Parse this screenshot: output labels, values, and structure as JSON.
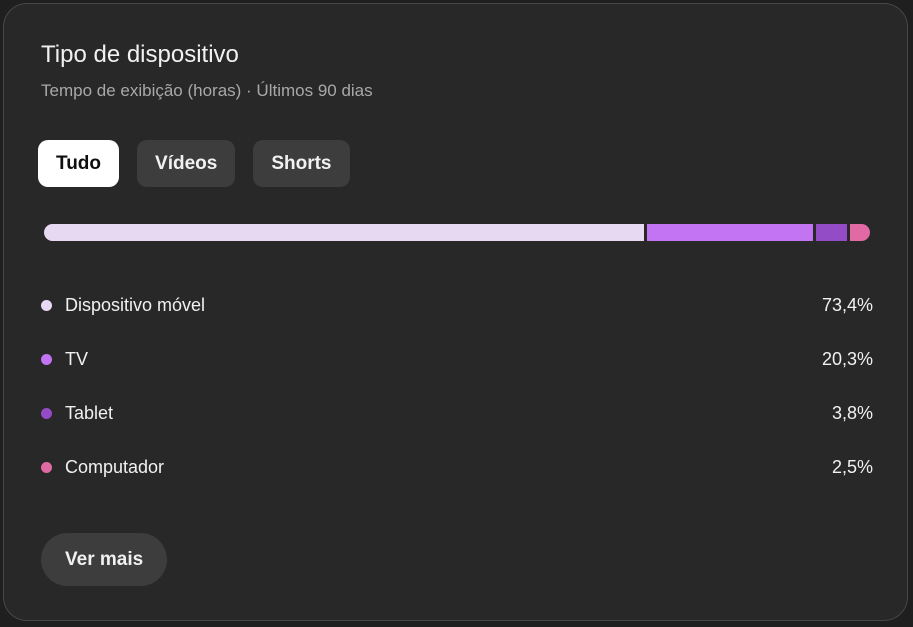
{
  "header": {
    "title": "Tipo de dispositivo",
    "subtitle": "Tempo de exibição (horas) · Últimos 90 dias"
  },
  "tabs": [
    {
      "label": "Tudo",
      "active": true
    },
    {
      "label": "Vídeos",
      "active": false
    },
    {
      "label": "Shorts",
      "active": false
    }
  ],
  "items": [
    {
      "label": "Dispositivo móvel",
      "value": "73,4%",
      "percent": 73.4,
      "color": "#e8d9f3"
    },
    {
      "label": "TV",
      "value": "20,3%",
      "percent": 20.3,
      "color": "#c274f2"
    },
    {
      "label": "Tablet",
      "value": "3,8%",
      "percent": 3.8,
      "color": "#944bc6"
    },
    {
      "label": "Computador",
      "value": "2,5%",
      "percent": 2.5,
      "color": "#e16aa4"
    }
  ],
  "more_label": "Ver mais"
}
